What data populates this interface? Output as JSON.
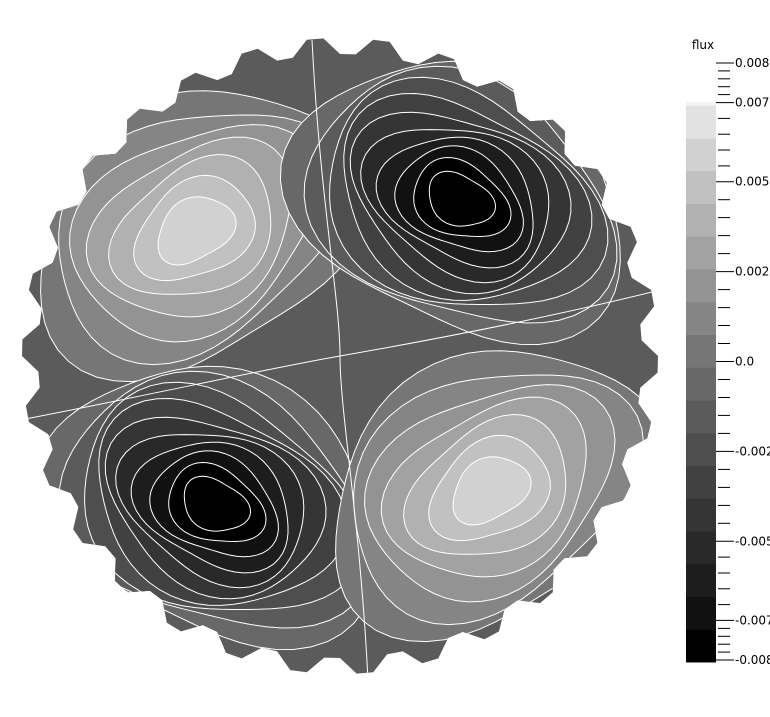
{
  "chart_data": {
    "type": "heatmap",
    "title": "",
    "colorbar": {
      "label": "flux",
      "range": [
        -0.008,
        0.008
      ],
      "bands": [
        "#000000",
        "#111111",
        "#1d1d1d",
        "#292929",
        "#353535",
        "#414141",
        "#4e4e4e",
        "#5b5b5b",
        "#686868",
        "#767676",
        "#858585",
        "#939393",
        "#a2a2a2",
        "#b1b1b1",
        "#c1c1c1",
        "#d1d1d1",
        "#e2e2e2",
        "#f3f3f3"
      ],
      "visible_band_range": [
        -0.008,
        0.0072
      ],
      "tick_labels": [
        {
          "value": 0.0083,
          "label": "0.008"
        },
        {
          "value": 0.0072,
          "label": "0.007"
        },
        {
          "value": 0.005,
          "label": "0.005"
        },
        {
          "value": 0.0025,
          "label": "0.002"
        },
        {
          "value": 0.0,
          "label": "0.0"
        },
        {
          "value": -0.0025,
          "label": "-0.002"
        },
        {
          "value": -0.005,
          "label": "-0.005"
        },
        {
          "value": -0.0072,
          "label": "-0.007"
        },
        {
          "value": -0.0083,
          "label": "-0.008"
        }
      ],
      "minor_ticks_per_label": 5
    },
    "field": {
      "description": "Quadrupole flux pattern over a circular core; positive lobes upper-left and lower-right, negative lobes upper-right and lower-left",
      "lobes": [
        {
          "quadrant": "upper-left",
          "sign": "positive",
          "peak": 0.0055
        },
        {
          "quadrant": "upper-right",
          "sign": "negative",
          "peak": -0.0078
        },
        {
          "quadrant": "lower-left",
          "sign": "negative",
          "peak": -0.0078
        },
        {
          "quadrant": "lower-right",
          "sign": "positive",
          "peak": 0.0055
        }
      ],
      "contour_interval": 0.0009,
      "contour_color": "#ffffff",
      "background_value": -0.0009
    }
  }
}
